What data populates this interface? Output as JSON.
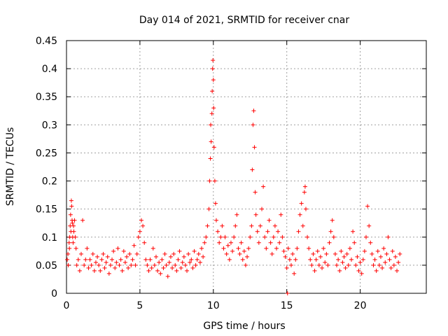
{
  "chart_data": {
    "type": "scatter",
    "title": "Day 014 of 2021, SRMTID for receiver cnar",
    "xlabel": "GPS time / hours",
    "ylabel": "SRMTID / TECUs",
    "xlim": [
      0,
      24.5
    ],
    "ylim": [
      0,
      0.45
    ],
    "x_ticks": [
      0,
      5,
      10,
      15,
      20
    ],
    "x_tick_labels": [
      "0",
      "5",
      "10",
      "15",
      "20"
    ],
    "y_ticks": [
      0,
      0.05,
      0.1,
      0.15,
      0.2,
      0.25,
      0.3,
      0.35,
      0.4,
      0.45
    ],
    "y_tick_labels": [
      "0",
      "0.05",
      "0.1",
      "0.15",
      "0.2",
      "0.25",
      "0.3",
      "0.35",
      "0.4",
      "0.45"
    ],
    "grid": true,
    "marker": "+",
    "color": "#ff0000",
    "series": [
      {
        "name": "SRMTID",
        "points": [
          [
            0.05,
            0.06
          ],
          [
            0.1,
            0.07
          ],
          [
            0.12,
            0.05
          ],
          [
            0.18,
            0.09
          ],
          [
            0.2,
            0.08
          ],
          [
            0.22,
            0.1
          ],
          [
            0.25,
            0.12
          ],
          [
            0.28,
            0.14
          ],
          [
            0.3,
            0.11
          ],
          [
            0.33,
            0.165
          ],
          [
            0.35,
            0.155
          ],
          [
            0.38,
            0.13
          ],
          [
            0.4,
            0.125
          ],
          [
            0.42,
            0.1
          ],
          [
            0.45,
            0.09
          ],
          [
            0.48,
            0.12
          ],
          [
            0.5,
            0.11
          ],
          [
            0.55,
            0.13
          ],
          [
            0.6,
            0.1
          ],
          [
            0.65,
            0.08
          ],
          [
            0.7,
            0.05
          ],
          [
            0.8,
            0.06
          ],
          [
            0.9,
            0.04
          ],
          [
            1.0,
            0.07
          ],
          [
            1.1,
            0.13
          ],
          [
            1.2,
            0.05
          ],
          [
            1.3,
            0.06
          ],
          [
            1.4,
            0.08
          ],
          [
            1.5,
            0.045
          ],
          [
            1.6,
            0.06
          ],
          [
            1.7,
            0.05
          ],
          [
            1.8,
            0.07
          ],
          [
            1.9,
            0.04
          ],
          [
            2.0,
            0.055
          ],
          [
            2.1,
            0.065
          ],
          [
            2.2,
            0.05
          ],
          [
            2.3,
            0.04
          ],
          [
            2.4,
            0.06
          ],
          [
            2.5,
            0.07
          ],
          [
            2.6,
            0.045
          ],
          [
            2.7,
            0.055
          ],
          [
            2.8,
            0.065
          ],
          [
            2.9,
            0.035
          ],
          [
            3.0,
            0.05
          ],
          [
            3.1,
            0.06
          ],
          [
            3.2,
            0.075
          ],
          [
            3.3,
            0.045
          ],
          [
            3.4,
            0.055
          ],
          [
            3.5,
            0.08
          ],
          [
            3.6,
            0.05
          ],
          [
            3.7,
            0.06
          ],
          [
            3.8,
            0.04
          ],
          [
            3.9,
            0.075
          ],
          [
            4.0,
            0.055
          ],
          [
            4.1,
            0.065
          ],
          [
            4.2,
            0.045
          ],
          [
            4.3,
            0.07
          ],
          [
            4.4,
            0.05
          ],
          [
            4.5,
            0.06
          ],
          [
            4.6,
            0.085
          ],
          [
            4.7,
            0.05
          ],
          [
            4.8,
            0.07
          ],
          [
            4.9,
            0.1
          ],
          [
            5.0,
            0.11
          ],
          [
            5.1,
            0.13
          ],
          [
            5.2,
            0.12
          ],
          [
            5.3,
            0.09
          ],
          [
            5.4,
            0.06
          ],
          [
            5.5,
            0.05
          ],
          [
            5.6,
            0.04
          ],
          [
            5.7,
            0.06
          ],
          [
            5.8,
            0.045
          ],
          [
            5.9,
            0.08
          ],
          [
            6.0,
            0.05
          ],
          [
            6.1,
            0.065
          ],
          [
            6.2,
            0.04
          ],
          [
            6.3,
            0.055
          ],
          [
            6.4,
            0.035
          ],
          [
            6.5,
            0.06
          ],
          [
            6.6,
            0.045
          ],
          [
            6.7,
            0.07
          ],
          [
            6.8,
            0.05
          ],
          [
            6.9,
            0.03
          ],
          [
            7.0,
            0.055
          ],
          [
            7.1,
            0.065
          ],
          [
            7.2,
            0.045
          ],
          [
            7.3,
            0.07
          ],
          [
            7.4,
            0.05
          ],
          [
            7.5,
            0.04
          ],
          [
            7.6,
            0.06
          ],
          [
            7.7,
            0.075
          ],
          [
            7.8,
            0.045
          ],
          [
            7.9,
            0.055
          ],
          [
            8.0,
            0.065
          ],
          [
            8.1,
            0.05
          ],
          [
            8.2,
            0.04
          ],
          [
            8.3,
            0.07
          ],
          [
            8.4,
            0.055
          ],
          [
            8.5,
            0.06
          ],
          [
            8.6,
            0.045
          ],
          [
            8.7,
            0.075
          ],
          [
            8.8,
            0.05
          ],
          [
            8.9,
            0.06
          ],
          [
            9.0,
            0.07
          ],
          [
            9.1,
            0.055
          ],
          [
            9.2,
            0.08
          ],
          [
            9.3,
            0.065
          ],
          [
            9.4,
            0.09
          ],
          [
            9.5,
            0.1
          ],
          [
            9.6,
            0.12
          ],
          [
            9.7,
            0.15
          ],
          [
            9.75,
            0.2
          ],
          [
            9.8,
            0.24
          ],
          [
            9.82,
            0.3
          ],
          [
            9.85,
            0.27
          ],
          [
            9.9,
            0.32
          ],
          [
            9.92,
            0.36
          ],
          [
            9.95,
            0.4
          ],
          [
            9.97,
            0.415
          ],
          [
            10.0,
            0.38
          ],
          [
            10.02,
            0.33
          ],
          [
            10.05,
            0.26
          ],
          [
            10.1,
            0.2
          ],
          [
            10.15,
            0.16
          ],
          [
            10.2,
            0.13
          ],
          [
            10.3,
            0.11
          ],
          [
            10.4,
            0.09
          ],
          [
            10.5,
            0.1
          ],
          [
            10.6,
            0.12
          ],
          [
            10.7,
            0.08
          ],
          [
            10.8,
            0.1
          ],
          [
            10.9,
            0.07
          ],
          [
            11.0,
            0.085
          ],
          [
            11.1,
            0.06
          ],
          [
            11.2,
            0.09
          ],
          [
            11.3,
            0.075
          ],
          [
            11.4,
            0.1
          ],
          [
            11.5,
            0.12
          ],
          [
            11.6,
            0.14
          ],
          [
            11.7,
            0.08
          ],
          [
            11.8,
            0.07
          ],
          [
            11.9,
            0.09
          ],
          [
            12.0,
            0.06
          ],
          [
            12.1,
            0.075
          ],
          [
            12.2,
            0.05
          ],
          [
            12.3,
            0.065
          ],
          [
            12.4,
            0.08
          ],
          [
            12.5,
            0.1
          ],
          [
            12.6,
            0.12
          ],
          [
            12.65,
            0.22
          ],
          [
            12.7,
            0.3
          ],
          [
            12.75,
            0.325
          ],
          [
            12.8,
            0.26
          ],
          [
            12.85,
            0.18
          ],
          [
            12.9,
            0.14
          ],
          [
            13.0,
            0.11
          ],
          [
            13.1,
            0.09
          ],
          [
            13.2,
            0.12
          ],
          [
            13.3,
            0.15
          ],
          [
            13.4,
            0.19
          ],
          [
            13.5,
            0.1
          ],
          [
            13.6,
            0.08
          ],
          [
            13.7,
            0.11
          ],
          [
            13.8,
            0.13
          ],
          [
            13.9,
            0.09
          ],
          [
            14.0,
            0.07
          ],
          [
            14.1,
            0.1
          ],
          [
            14.2,
            0.12
          ],
          [
            14.3,
            0.08
          ],
          [
            14.4,
            0.11
          ],
          [
            14.5,
            0.09
          ],
          [
            14.6,
            0.14
          ],
          [
            14.7,
            0.1
          ],
          [
            14.8,
            0.075
          ],
          [
            14.9,
            0.065
          ],
          [
            15.0,
            0.045
          ],
          [
            15.05,
            0.0
          ],
          [
            15.1,
            0.08
          ],
          [
            15.2,
            0.06
          ],
          [
            15.3,
            0.05
          ],
          [
            15.4,
            0.07
          ],
          [
            15.5,
            0.035
          ],
          [
            15.6,
            0.06
          ],
          [
            15.7,
            0.08
          ],
          [
            15.8,
            0.11
          ],
          [
            15.9,
            0.14
          ],
          [
            16.0,
            0.16
          ],
          [
            16.1,
            0.12
          ],
          [
            16.2,
            0.18
          ],
          [
            16.25,
            0.19
          ],
          [
            16.3,
            0.15
          ],
          [
            16.4,
            0.1
          ],
          [
            16.5,
            0.08
          ],
          [
            16.6,
            0.06
          ],
          [
            16.7,
            0.05
          ],
          [
            16.8,
            0.07
          ],
          [
            16.9,
            0.04
          ],
          [
            17.0,
            0.06
          ],
          [
            17.1,
            0.075
          ],
          [
            17.2,
            0.05
          ],
          [
            17.3,
            0.065
          ],
          [
            17.4,
            0.045
          ],
          [
            17.5,
            0.08
          ],
          [
            17.6,
            0.055
          ],
          [
            17.7,
            0.07
          ],
          [
            17.8,
            0.05
          ],
          [
            17.9,
            0.09
          ],
          [
            18.0,
            0.11
          ],
          [
            18.1,
            0.13
          ],
          [
            18.2,
            0.1
          ],
          [
            18.3,
            0.07
          ],
          [
            18.4,
            0.05
          ],
          [
            18.5,
            0.06
          ],
          [
            18.6,
            0.04
          ],
          [
            18.7,
            0.075
          ],
          [
            18.8,
            0.055
          ],
          [
            18.9,
            0.065
          ],
          [
            19.0,
            0.045
          ],
          [
            19.1,
            0.07
          ],
          [
            19.2,
            0.05
          ],
          [
            19.3,
            0.08
          ],
          [
            19.4,
            0.06
          ],
          [
            19.5,
            0.11
          ],
          [
            19.6,
            0.09
          ],
          [
            19.7,
            0.05
          ],
          [
            19.8,
            0.065
          ],
          [
            19.9,
            0.04
          ],
          [
            20.0,
            0.055
          ],
          [
            20.1,
            0.035
          ],
          [
            20.2,
            0.06
          ],
          [
            20.3,
            0.075
          ],
          [
            20.4,
            0.1
          ],
          [
            20.5,
            0.155
          ],
          [
            20.6,
            0.12
          ],
          [
            20.7,
            0.09
          ],
          [
            20.8,
            0.07
          ],
          [
            20.9,
            0.05
          ],
          [
            21.0,
            0.06
          ],
          [
            21.1,
            0.04
          ],
          [
            21.2,
            0.075
          ],
          [
            21.3,
            0.05
          ],
          [
            21.4,
            0.065
          ],
          [
            21.5,
            0.045
          ],
          [
            21.6,
            0.08
          ],
          [
            21.7,
            0.055
          ],
          [
            21.8,
            0.07
          ],
          [
            21.9,
            0.1
          ],
          [
            22.0,
            0.06
          ],
          [
            22.1,
            0.045
          ],
          [
            22.2,
            0.075
          ],
          [
            22.3,
            0.05
          ],
          [
            22.4,
            0.065
          ],
          [
            22.5,
            0.04
          ],
          [
            22.6,
            0.055
          ],
          [
            22.7,
            0.07
          ]
        ]
      }
    ]
  }
}
